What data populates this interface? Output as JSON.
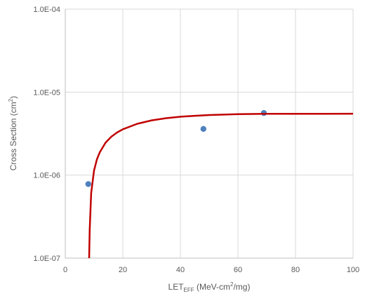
{
  "chart_data": {
    "type": "scatter",
    "xlabel": {
      "main": "LET",
      "sub": "EFF",
      "rest": " (MeV-cm",
      "sup": "2",
      "tail": "/mg)"
    },
    "ylabel": {
      "main": "Cross Section (cm",
      "sup": "2",
      "tail": ")"
    },
    "xlim": [
      0,
      100
    ],
    "ylim": [
      1e-07,
      0.0001
    ],
    "yscale": "log",
    "x_ticks": [
      0,
      20,
      40,
      60,
      80,
      100
    ],
    "x_tick_labels": [
      "0",
      "20",
      "40",
      "60",
      "80",
      "100"
    ],
    "y_ticks": [
      1e-07,
      1e-06,
      1e-05,
      0.0001
    ],
    "y_tick_labels": [
      "1.0E-07",
      "1.0E-06",
      "1.0E-05",
      "1.0E-04"
    ],
    "grid": true,
    "legend": "none",
    "series": [
      {
        "kind": "points",
        "color": "#4f81bd",
        "x": [
          8,
          48,
          69
        ],
        "y": [
          7.8e-07,
          3.6e-06,
          5.6e-06
        ]
      },
      {
        "kind": "line",
        "color": "#c00000",
        "x": [
          8.3,
          8.5,
          9,
          10,
          11,
          12,
          14,
          16,
          18,
          20,
          25,
          30,
          35,
          40,
          45,
          50,
          60,
          70,
          80,
          90,
          100
        ],
        "y": [
          1e-07,
          2.2e-07,
          6.1e-07,
          1.14e-06,
          1.55e-06,
          1.89e-06,
          2.46e-06,
          2.9e-06,
          3.26e-06,
          3.57e-06,
          4.15e-06,
          4.57e-06,
          4.85e-06,
          5.05e-06,
          5.18e-06,
          5.3e-06,
          5.42e-06,
          5.47e-06,
          5.48e-06,
          5.49e-06,
          5.5e-06
        ]
      }
    ]
  }
}
